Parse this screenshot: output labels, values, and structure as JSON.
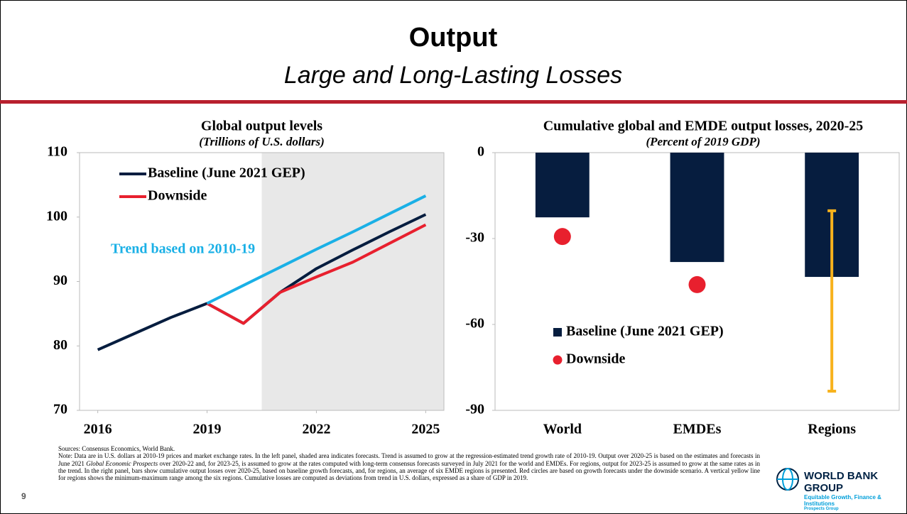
{
  "header": {
    "title": "Output",
    "subtitle": "Large and Long-Lasting Losses"
  },
  "chart_data": [
    {
      "type": "line",
      "title": "Global output levels",
      "subtitle": "(Trillions of U.S. dollars)",
      "x": [
        2016,
        2017,
        2018,
        2019,
        2020,
        2021,
        2022,
        2023,
        2024,
        2025
      ],
      "xlim": [
        2015.5,
        2025.5
      ],
      "xticks": [
        2016,
        2019,
        2022,
        2025
      ],
      "ylim": [
        70,
        110
      ],
      "yticks": [
        70,
        80,
        90,
        100,
        110
      ],
      "shade": {
        "from": 2020.5,
        "to": 2025.5,
        "color": "#e8e8e8"
      },
      "series": [
        {
          "name": "Baseline (June 2021 GEP)",
          "color": "#061d3f",
          "in_legend": true,
          "values": [
            79.4,
            81.9,
            84.4,
            86.6,
            83.5,
            88.3,
            92.0,
            94.9,
            97.7,
            100.4
          ]
        },
        {
          "name": "Downside",
          "color": "#e8202e",
          "in_legend": true,
          "values": [
            null,
            null,
            null,
            86.6,
            83.5,
            88.3,
            90.7,
            93.0,
            95.9,
            98.8
          ]
        },
        {
          "name": "Trend based on 2010-19",
          "color": "#1ab0e6",
          "in_legend": false,
          "values": [
            null,
            null,
            null,
            86.6,
            89.4,
            92.2,
            95.0,
            97.7,
            100.5,
            103.3
          ]
        }
      ]
    },
    {
      "type": "bar",
      "title": "Cumulative global and EMDE output losses, 2020-25",
      "subtitle": "(Percent of 2019 GDP)",
      "categories": [
        "World",
        "EMDEs",
        "Regions"
      ],
      "ylim": [
        -90,
        0
      ],
      "yticks": [
        -90,
        -60,
        -30,
        0
      ],
      "series": [
        {
          "name": "Baseline (June 2021 GEP)",
          "type": "bar",
          "color": "#061d3f",
          "values": [
            -22.6,
            -38.2,
            -43.4
          ]
        },
        {
          "name": "Downside",
          "type": "scatter",
          "color": "#e8202e",
          "values": [
            -29.3,
            -46.1,
            null
          ]
        }
      ],
      "ranges": {
        "color": "#f7b21c",
        "values": [
          null,
          null,
          [
            -20.3,
            -83.3
          ]
        ]
      }
    }
  ],
  "footer": {
    "sources": "Sources: Consensus Economics, World Bank.",
    "note": [
      "Note: Data are in U.S. dollars at 2010-19 prices and market exchange rates. In the left panel, shaded area indicates forecasts. Trend is assumed to grow at the regression-estimated trend growth rate of 2010-19. Output over 2020-25 is based on the estimates and forecasts in June 2021 ",
      "Global Economic Prospects",
      " over 2020-22 and, for 2023-25, is assumed to grow at the rates computed with long-term consensus forecasts surveyed in July 2021 for the world and EMDEs. For regions, output for 2023-25 is assumed to grow at the same rates as in the trend. In the right panel, bars show cumulative output losses over 2020-25, based on baseline growth forecasts, and, for regions, an average of six EMDE regions is presented. Red circles are based on growth forecasts under the downside scenario. A vertical yellow line for regions shows the minimum-maximum range among the six regions. Cumulative losses are computed as deviations from trend in U.S. dollars, expressed as a share of GDP in 2019."
    ],
    "page_number": "9",
    "logo": {
      "name": "WORLD BANK GROUP",
      "tagline": "Equitable Growth, Finance & Institutions",
      "unit": "Prospects Group"
    }
  }
}
